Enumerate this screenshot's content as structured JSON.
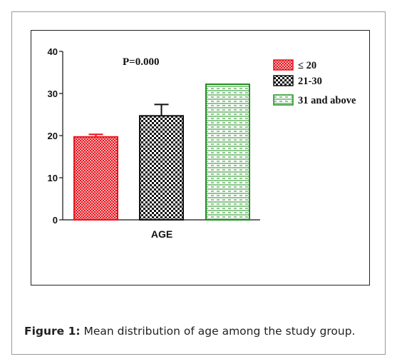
{
  "figure": {
    "caption_label": "Figure 1:",
    "caption_text": " Mean distribution of age among the study group."
  },
  "chart_data": {
    "type": "bar",
    "categories": [
      "AGE"
    ],
    "series": [
      {
        "name": "≤ 20",
        "values": [
          19.7
        ],
        "error": [
          0.6
        ],
        "color": "#e8141c",
        "pattern": "checker-fine"
      },
      {
        "name": "21-30",
        "values": [
          24.7
        ],
        "error": [
          2.7
        ],
        "color": "#111111",
        "pattern": "checker-bold"
      },
      {
        "name": "31 and above",
        "values": [
          32.2
        ],
        "error": [
          0
        ],
        "color": "#1e8e1e",
        "pattern": "horizontal-dashed"
      }
    ],
    "annotation": "P=0.000",
    "ylim": [
      0,
      40
    ],
    "yticks": [
      "0",
      "10",
      "20",
      "30",
      "40"
    ],
    "xlabel": "AGE",
    "ylabel": "",
    "title": "",
    "grid": false,
    "legend_position": "top-right"
  }
}
